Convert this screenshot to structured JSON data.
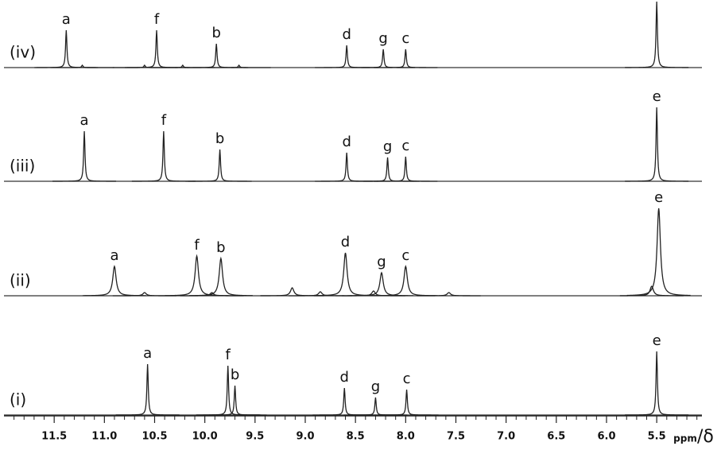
{
  "chart_data": {
    "type": "nmr",
    "xlim": [
      12.0,
      5.05
    ],
    "xticks": [
      {
        "value": 11.5,
        "label": "11.5"
      },
      {
        "value": 11,
        "label": "11.0"
      },
      {
        "value": 10.5,
        "label": "10.5"
      },
      {
        "value": 10,
        "label": "10.0"
      },
      {
        "value": 9.5,
        "label": "9.5"
      },
      {
        "value": 9,
        "label": "9.0"
      },
      {
        "value": 8.5,
        "label": "8.5"
      },
      {
        "value": 8,
        "label": "8.0"
      },
      {
        "value": 7.5,
        "label": "7.5"
      },
      {
        "value": 7,
        "label": "7.0"
      },
      {
        "value": 6.5,
        "label": "6.5"
      },
      {
        "value": 6,
        "label": "6.0"
      },
      {
        "value": 5.5,
        "label": "5.5"
      }
    ],
    "xminor": [
      11.9,
      11.8,
      11.7,
      11.6,
      11.4,
      11.3,
      11.2,
      11.1,
      10.9,
      10.8,
      10.7,
      10.6,
      10.4,
      10.3,
      10.2,
      10.1,
      9.9,
      9.8,
      9.7,
      9.6,
      9.4,
      9.3,
      9.2,
      9.1,
      8.9,
      8.8,
      8.7,
      8.6,
      8.4,
      8.3,
      8.2,
      8.1,
      7.9,
      7.8,
      7.7,
      7.6,
      7.4,
      7.3,
      7.2,
      7.1,
      6.9,
      6.8,
      6.7,
      6.6,
      6.4,
      6.3,
      6.2,
      6.1,
      5.9,
      5.8,
      5.7,
      5.6,
      5.4,
      5.3,
      5.2,
      5.1
    ],
    "x_label_unit": "ppm",
    "x_label_symbol": "/δ",
    "spectra": [
      {
        "name": "(iv)",
        "peak_width": 0.008,
        "peaks": [
          {
            "label": "a",
            "ppm": 11.38,
            "intensity": 47
          },
          {
            "ppm": 11.22,
            "intensity": 3
          },
          {
            "ppm": 10.6,
            "intensity": 3
          },
          {
            "label": "f",
            "ppm": 10.48,
            "intensity": 47
          },
          {
            "ppm": 10.22,
            "intensity": 3
          },
          {
            "label": "b",
            "ppm": 9.885,
            "intensity": 30
          },
          {
            "ppm": 9.66,
            "intensity": 3
          },
          {
            "label": "d",
            "ppm": 8.587,
            "intensity": 28
          },
          {
            "label": "g",
            "ppm": 8.223,
            "intensity": 23
          },
          {
            "label": "c",
            "ppm": 8.0,
            "intensity": 23
          },
          {
            "ppm": 5.5,
            "intensity": 83
          }
        ]
      },
      {
        "name": "(iii)",
        "peak_width": 0.008,
        "peaks": [
          {
            "label": "a",
            "ppm": 11.2,
            "intensity": 63
          },
          {
            "label": "f",
            "ppm": 10.41,
            "intensity": 63
          },
          {
            "label": "b",
            "ppm": 9.85,
            "intensity": 40
          },
          {
            "label": "d",
            "ppm": 8.587,
            "intensity": 36
          },
          {
            "label": "g",
            "ppm": 8.18,
            "intensity": 30
          },
          {
            "label": "c",
            "ppm": 8.0,
            "intensity": 31
          },
          {
            "label": "e",
            "ppm": 5.5,
            "intensity": 93
          }
        ]
      },
      {
        "name": "(ii)",
        "peak_width": 0.02,
        "peaks": [
          {
            "label": "a",
            "ppm": 10.9,
            "intensity": 37
          },
          {
            "ppm": 10.6,
            "intensity": 4
          },
          {
            "label": "f",
            "ppm": 10.08,
            "intensity": 50
          },
          {
            "ppm": 9.93,
            "intensity": 4
          },
          {
            "label": "b",
            "ppm": 9.84,
            "intensity": 47
          },
          {
            "ppm": 9.13,
            "intensity": 10
          },
          {
            "ppm": 8.85,
            "intensity": 5
          },
          {
            "label": "d",
            "ppm": 8.6,
            "intensity": 54
          },
          {
            "ppm": 8.32,
            "intensity": 6
          },
          {
            "label": "g",
            "ppm": 8.24,
            "intensity": 29
          },
          {
            "label": "c",
            "ppm": 8.0,
            "intensity": 37
          },
          {
            "ppm": 7.57,
            "intensity": 4
          },
          {
            "ppm": 5.55,
            "intensity": 12
          },
          {
            "label": "e",
            "ppm": 5.48,
            "intensity": 110
          }
        ]
      },
      {
        "name": "(i)",
        "peak_width": 0.008,
        "peaks": [
          {
            "label": "a",
            "ppm": 10.57,
            "intensity": 64
          },
          {
            "label": "f",
            "ppm": 9.77,
            "intensity": 62
          },
          {
            "label": "b",
            "ppm": 9.7,
            "intensity": 37
          },
          {
            "label": "d",
            "ppm": 8.61,
            "intensity": 34
          },
          {
            "label": "g",
            "ppm": 8.3,
            "intensity": 22
          },
          {
            "label": "c",
            "ppm": 7.99,
            "intensity": 32
          },
          {
            "label": "e",
            "ppm": 5.5,
            "intensity": 80
          }
        ]
      }
    ]
  }
}
